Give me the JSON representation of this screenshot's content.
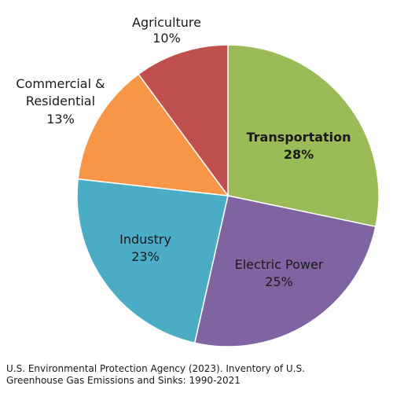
{
  "chart_data": {
    "type": "pie",
    "slices": [
      {
        "label": "Transportation",
        "value": 28,
        "value_label": "28%",
        "color": "#9bbb59",
        "bold": true
      },
      {
        "label": "Electric Power",
        "value": 25,
        "value_label": "25%",
        "color": "#8064a2"
      },
      {
        "label": "Industry",
        "value": 23,
        "value_label": "23%",
        "color": "#4bacc6"
      },
      {
        "label": "Commercial & Residential",
        "value": 13,
        "value_label": "13%",
        "color": "#f79646"
      },
      {
        "label": "Agriculture",
        "value": 10,
        "value_label": "10%",
        "color": "#c0504d"
      }
    ],
    "label_lines": {
      "commercial": [
        "Commercial &",
        "Residential"
      ]
    }
  },
  "source": {
    "line1": "U.S. Environmental Protection Agency (2023). Inventory of U.S.",
    "line2": "Greenhouse Gas Emissions and Sinks: 1990-2021"
  }
}
